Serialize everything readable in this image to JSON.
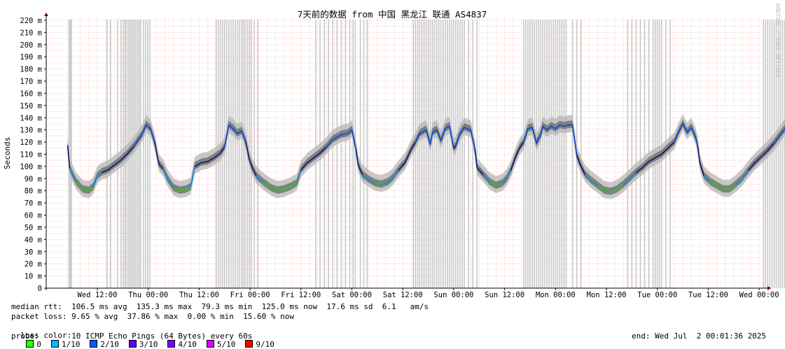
{
  "chart_data": {
    "type": "line",
    "title": "7天前的数据 from 中国 黑龙江 联通 AS4837",
    "ylabel": "Seconds",
    "ylim": [
      0,
      225
    ],
    "y_ticks": [
      {
        "v": 0,
        "label": "0"
      },
      {
        "v": 10,
        "label": "10 m"
      },
      {
        "v": 20,
        "label": "20 m"
      },
      {
        "v": 30,
        "label": "30 m"
      },
      {
        "v": 40,
        "label": "40 m"
      },
      {
        "v": 50,
        "label": "50 m"
      },
      {
        "v": 60,
        "label": "60 m"
      },
      {
        "v": 70,
        "label": "70 m"
      },
      {
        "v": 80,
        "label": "80 m"
      },
      {
        "v": 90,
        "label": "90 m"
      },
      {
        "v": 100,
        "label": "100 m"
      },
      {
        "v": 110,
        "label": "110 m"
      },
      {
        "v": 120,
        "label": "120 m"
      },
      {
        "v": 130,
        "label": "130 m"
      },
      {
        "v": 140,
        "label": "140 m"
      },
      {
        "v": 150,
        "label": "150 m"
      },
      {
        "v": 160,
        "label": "160 m"
      },
      {
        "v": 170,
        "label": "170 m"
      },
      {
        "v": 180,
        "label": "180 m"
      },
      {
        "v": 190,
        "label": "190 m"
      },
      {
        "v": 200,
        "label": "200 m"
      },
      {
        "v": 210,
        "label": "210 m"
      },
      {
        "v": 220,
        "label": "220 m"
      }
    ],
    "x_hours_range": [
      -7,
      171
    ],
    "x_ticks": [
      {
        "h": 0,
        "label": "Wed 12:00"
      },
      {
        "h": 12,
        "label": "Thu 00:00"
      },
      {
        "h": 24,
        "label": "Thu 12:00"
      },
      {
        "h": 36,
        "label": "Fri 00:00"
      },
      {
        "h": 48,
        "label": "Fri 12:00"
      },
      {
        "h": 60,
        "label": "Sat 00:00"
      },
      {
        "h": 72,
        "label": "Sat 12:00"
      },
      {
        "h": 84,
        "label": "Sun 00:00"
      },
      {
        "h": 96,
        "label": "Sun 12:00"
      },
      {
        "h": 108,
        "label": "Mon 00:00"
      },
      {
        "h": 120,
        "label": "Mon 12:00"
      },
      {
        "h": 132,
        "label": "Tue 00:00"
      },
      {
        "h": 144,
        "label": "Tue 12:00"
      },
      {
        "h": 156,
        "label": "Wed 00:00"
      }
    ],
    "median_rtt_ms": [
      [
        -7,
        117
      ],
      [
        -6.5,
        98
      ],
      [
        -5,
        87
      ],
      [
        -3.5,
        81
      ],
      [
        -2,
        80
      ],
      [
        -1,
        83
      ],
      [
        0,
        92
      ],
      [
        1,
        95
      ],
      [
        2.5,
        97
      ],
      [
        4,
        101
      ],
      [
        5.5,
        105
      ],
      [
        7,
        110
      ],
      [
        8.5,
        116
      ],
      [
        9.5,
        121
      ],
      [
        10.5,
        126
      ],
      [
        11.5,
        134
      ],
      [
        12.5,
        131
      ],
      [
        13.5,
        120
      ],
      [
        14.5,
        102
      ],
      [
        15.5,
        98
      ],
      [
        16.5,
        90
      ],
      [
        18,
        82
      ],
      [
        19.5,
        80
      ],
      [
        21,
        81
      ],
      [
        22,
        83
      ],
      [
        23,
        100
      ],
      [
        24.5,
        103
      ],
      [
        26,
        104
      ],
      [
        27.5,
        107
      ],
      [
        29,
        111
      ],
      [
        30,
        116
      ],
      [
        31,
        134
      ],
      [
        32,
        131
      ],
      [
        33,
        127
      ],
      [
        34,
        129
      ],
      [
        35,
        120
      ],
      [
        35.8,
        106
      ],
      [
        36.5,
        99
      ],
      [
        37.5,
        92
      ],
      [
        39,
        87
      ],
      [
        41,
        82
      ],
      [
        42.5,
        80
      ],
      [
        44,
        81
      ],
      [
        45.5,
        83
      ],
      [
        47,
        86
      ],
      [
        48,
        97
      ],
      [
        49.5,
        103
      ],
      [
        51,
        107
      ],
      [
        52.5,
        111
      ],
      [
        54,
        116
      ],
      [
        55.5,
        122
      ],
      [
        56.5,
        124
      ],
      [
        57.5,
        126
      ],
      [
        59,
        127
      ],
      [
        60,
        130
      ],
      [
        61,
        113
      ],
      [
        61.5,
        101
      ],
      [
        62.5,
        93
      ],
      [
        64,
        89
      ],
      [
        65.5,
        86
      ],
      [
        67,
        85
      ],
      [
        68.5,
        87
      ],
      [
        69.5,
        90
      ],
      [
        71,
        97
      ],
      [
        72.5,
        103
      ],
      [
        74,
        114
      ],
      [
        75,
        120
      ],
      [
        76,
        127
      ],
      [
        77.5,
        130
      ],
      [
        78.5,
        118
      ],
      [
        79,
        128
      ],
      [
        80,
        130
      ],
      [
        81,
        121
      ],
      [
        82,
        131
      ],
      [
        83,
        133
      ],
      [
        84,
        115
      ],
      [
        84.5,
        117
      ],
      [
        85.5,
        127
      ],
      [
        86.5,
        132
      ],
      [
        88,
        130
      ],
      [
        89,
        114
      ],
      [
        89.5,
        99
      ],
      [
        91,
        93
      ],
      [
        92.5,
        87
      ],
      [
        94,
        84
      ],
      [
        95.5,
        86
      ],
      [
        96.5,
        90
      ],
      [
        97.5,
        97
      ],
      [
        98.5,
        107
      ],
      [
        99.5,
        115
      ],
      [
        100.5,
        120
      ],
      [
        101.5,
        131
      ],
      [
        102.5,
        132
      ],
      [
        103.5,
        119
      ],
      [
        104.5,
        126
      ],
      [
        105,
        133
      ],
      [
        106,
        130
      ],
      [
        107,
        133
      ],
      [
        108,
        131
      ],
      [
        109,
        134
      ],
      [
        110,
        133
      ],
      [
        111,
        134
      ],
      [
        112,
        134
      ],
      [
        113,
        109
      ],
      [
        114,
        100
      ],
      [
        115,
        93
      ],
      [
        116.5,
        88
      ],
      [
        118,
        84
      ],
      [
        119.5,
        80
      ],
      [
        121,
        79
      ],
      [
        122.5,
        81
      ],
      [
        124,
        85
      ],
      [
        125.5,
        90
      ],
      [
        127,
        95
      ],
      [
        128.5,
        99
      ],
      [
        130,
        104
      ],
      [
        131.5,
        107
      ],
      [
        133,
        110
      ],
      [
        134.5,
        115
      ],
      [
        136,
        120
      ],
      [
        137,
        128
      ],
      [
        138,
        135
      ],
      [
        139,
        128
      ],
      [
        140,
        132
      ],
      [
        141,
        124
      ],
      [
        141.5,
        117
      ],
      [
        142,
        103
      ],
      [
        143,
        92
      ],
      [
        144.5,
        87
      ],
      [
        146,
        84
      ],
      [
        147.5,
        81
      ],
      [
        149,
        81
      ],
      [
        150.5,
        85
      ],
      [
        152,
        90
      ],
      [
        153.5,
        97
      ],
      [
        155,
        103
      ],
      [
        156.5,
        108
      ],
      [
        158,
        113
      ],
      [
        159.5,
        119
      ],
      [
        161,
        126
      ],
      [
        162.5,
        133
      ],
      [
        163.5,
        131
      ],
      [
        164.5,
        121
      ],
      [
        165,
        130
      ],
      [
        165.5,
        127
      ]
    ],
    "loss_spike_hours": [
      -6.7,
      -6.4,
      -6.1,
      2.3,
      3.1,
      4.8,
      5.6,
      6.2,
      6.6,
      7.0,
      7.4,
      7.8,
      8.2,
      8.6,
      9.0,
      9.4,
      9.8,
      10.2,
      10.9,
      11.4,
      11.9,
      12.4,
      28.0,
      28.5,
      29.0,
      29.5,
      30.0,
      30.5,
      31.0,
      31.5,
      32.0,
      32.5,
      33.0,
      33.5,
      34.0,
      34.4,
      34.8,
      35.3,
      35.8,
      36.3,
      37.0,
      37.8,
      51.5,
      52.5,
      53.5,
      54.5,
      55.5,
      56.5,
      57.5,
      58.5,
      59.5,
      60.3,
      60.8,
      62.0,
      62.8,
      63.6,
      74.5,
      75.0,
      75.5,
      76.0,
      76.5,
      77.0,
      77.5,
      78.0,
      78.5,
      79.0,
      79.5,
      80.0,
      80.5,
      81.0,
      81.5,
      82.0,
      82.5,
      83.0,
      83.5,
      84.0,
      84.5,
      85.0,
      85.5,
      86.0,
      86.5,
      87.5,
      88.5,
      89.5,
      100.5,
      101.0,
      101.5,
      102.0,
      102.5,
      103.0,
      103.5,
      104.0,
      104.5,
      105.0,
      105.5,
      106.0,
      106.5,
      107.0,
      107.5,
      108.0,
      108.5,
      109.0,
      109.5,
      110.0,
      110.5,
      112.0,
      113.0,
      114.0,
      125.0,
      126.0,
      127.0,
      128.0,
      129.0,
      130.0,
      131.0,
      131.5,
      132.0,
      132.5,
      133.0,
      134.0,
      135.0,
      157.0,
      157.5,
      158.0,
      158.5,
      159.0,
      159.5,
      160.0,
      160.5,
      161.0,
      161.5,
      162.0,
      162.5,
      163.0,
      163.5,
      164.0,
      164.5,
      165.0,
      165.5
    ],
    "legend": [
      {
        "label": "0",
        "color": "#26ff00"
      },
      {
        "label": "1/10",
        "color": "#00b8ff"
      },
      {
        "label": "2/10",
        "color": "#0059ff"
      },
      {
        "label": "3/10",
        "color": "#5e00ff"
      },
      {
        "label": "4/10",
        "color": "#7e00ff"
      },
      {
        "label": "5/10",
        "color": "#dd00ff"
      },
      {
        "label": "9/10",
        "color": "#ff0000"
      }
    ],
    "colors": {
      "grid": "#ff9a9a",
      "smoke": "#c9c9c9",
      "loss_spike": "#c8c8c8",
      "median": "#0a1a6a",
      "axis": "#7a0000"
    }
  },
  "stats": {
    "median_rtt": "median rtt:  106.5 ms avg  135.3 ms max  79.3 ms min  125.0 ms now  17.6 ms sd  6.1   am/s",
    "packet_loss": "packet loss: 9.65 % avg  37.86 % max  0.00 % min  15.60 % now",
    "loss_color_label": "loss color:",
    "probe": "probe:       10 ICMP Echo Pings (64 Bytes) every 60s",
    "end": "end: Wed Jul  2 00:01:36 2025"
  },
  "watermark": "RRDTOOL / TOBI OETIKER"
}
